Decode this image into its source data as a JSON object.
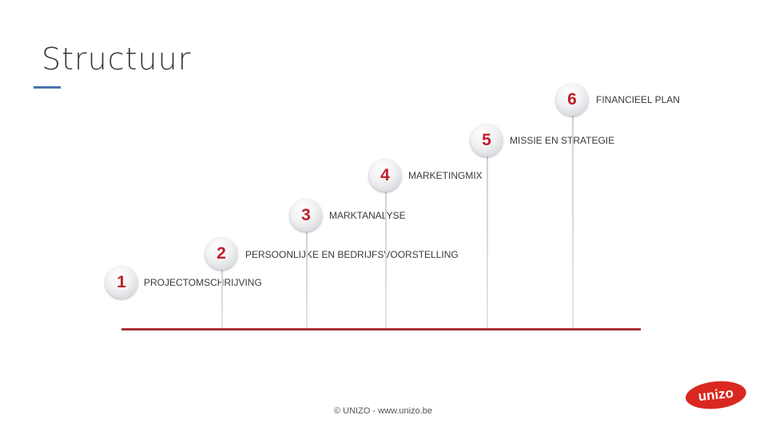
{
  "slide": {
    "title": "Structuur",
    "footer": "© UNIZO - www.unizo.be",
    "logo_text": "unizo",
    "accent_color": "#c0202a",
    "title_bar_color": "#4a73b0"
  },
  "steps": [
    {
      "number": "1",
      "label": "PROJECTOMSCHRIJVING"
    },
    {
      "number": "2",
      "label": "PERSOONLIJKE EN BEDRIJFSVOORSTELLING"
    },
    {
      "number": "3",
      "label": "MARKTANALYSE"
    },
    {
      "number": "4",
      "label": "MARKETINGMIX"
    },
    {
      "number": "5",
      "label": "MISSIE EN STRATEGIE"
    },
    {
      "number": "6",
      "label": "FINANCIEEL PLAN"
    }
  ]
}
